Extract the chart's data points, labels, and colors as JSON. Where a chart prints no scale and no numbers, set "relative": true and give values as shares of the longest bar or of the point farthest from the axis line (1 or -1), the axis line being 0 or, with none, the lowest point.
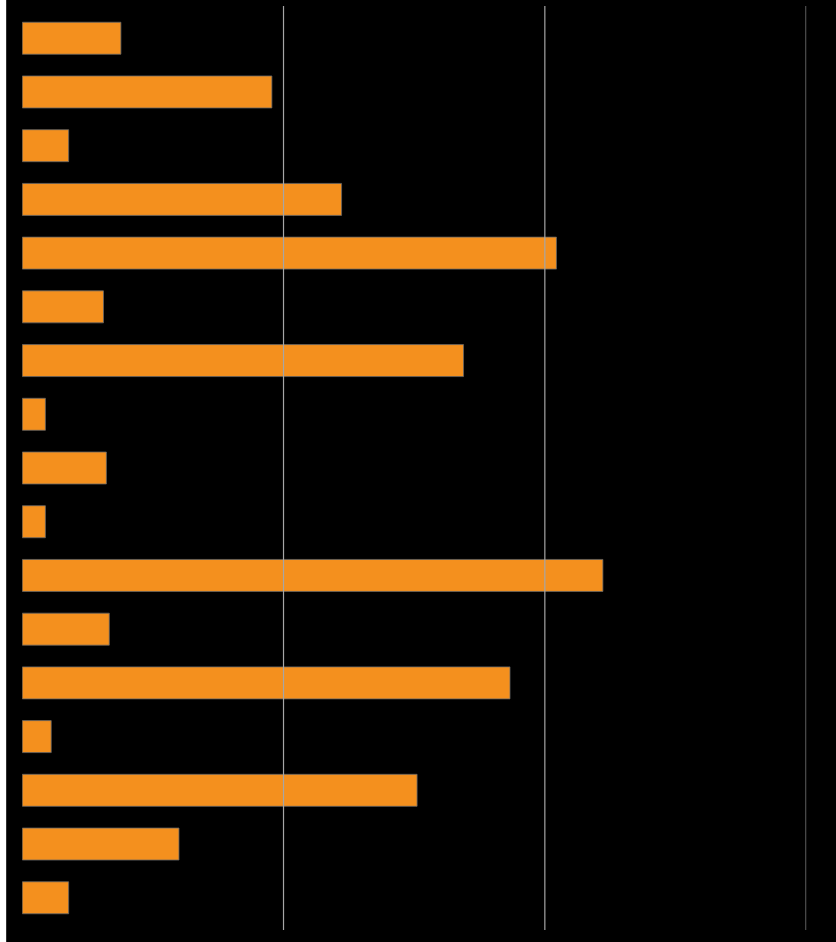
{
  "chart_data": {
    "type": "bar",
    "orientation": "horizontal",
    "relative": true,
    "color": "#f4901e",
    "ref_lines": [
      {
        "axis": "x",
        "value": 0.45,
        "color": "#a6a6a6"
      },
      {
        "axis": "x",
        "value": 0.9,
        "color": "#a6a6a6"
      },
      {
        "axis": "x",
        "value": 1.35,
        "color": "#a6a6a6"
      }
    ],
    "categories": [
      null,
      null,
      null,
      null,
      null,
      null,
      null,
      null,
      null,
      null,
      null,
      null,
      null,
      null,
      null,
      null,
      null
    ],
    "values": [
      0.17,
      0.43,
      0.08,
      0.55,
      0.92,
      0.14,
      0.76,
      0.04,
      0.145,
      0.04,
      1,
      0.15,
      0.84,
      0.05,
      0.68,
      0.27,
      0.08
    ]
  }
}
